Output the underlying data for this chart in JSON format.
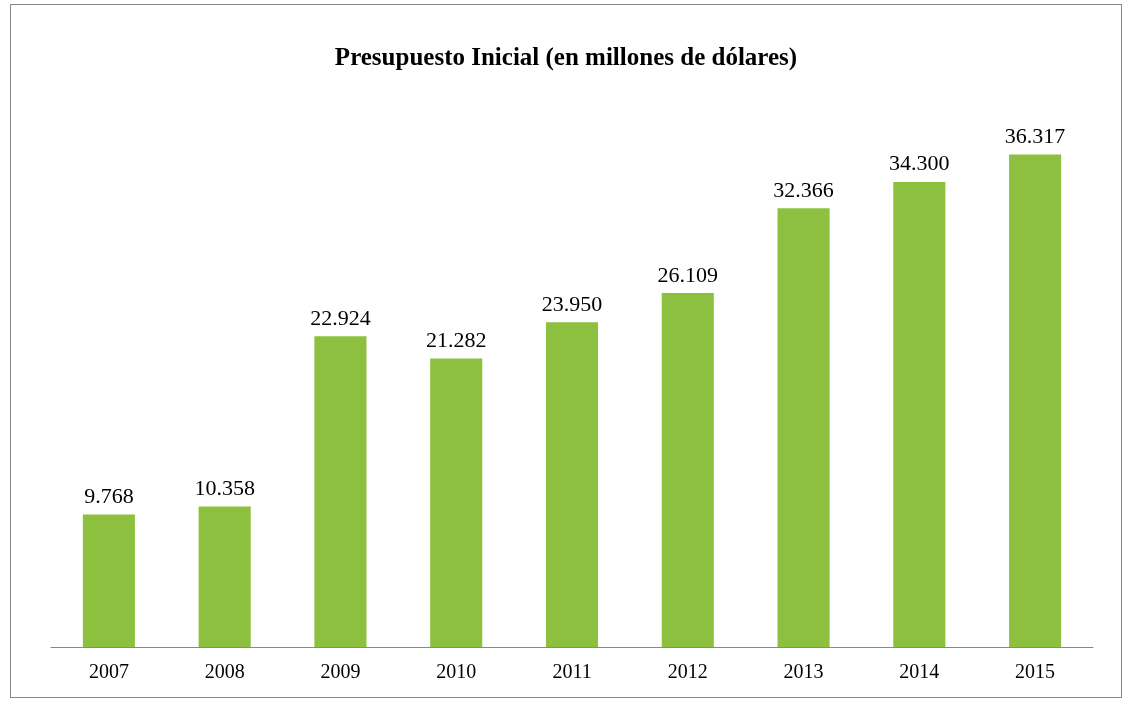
{
  "chart_data": {
    "type": "bar",
    "title": "Presupuesto Inicial (en millones de dólares)",
    "categories": [
      "2007",
      "2008",
      "2009",
      "2010",
      "2011",
      "2012",
      "2013",
      "2014",
      "2015"
    ],
    "values": [
      9768,
      10358,
      22924,
      21282,
      23950,
      26109,
      32366,
      34300,
      36317
    ],
    "value_labels": [
      "9.768",
      "10.358",
      "22.924",
      "21.282",
      "23.950",
      "26.109",
      "32.366",
      "34.300",
      "36.317"
    ],
    "color": "#8dc03f",
    "grid": false
  }
}
